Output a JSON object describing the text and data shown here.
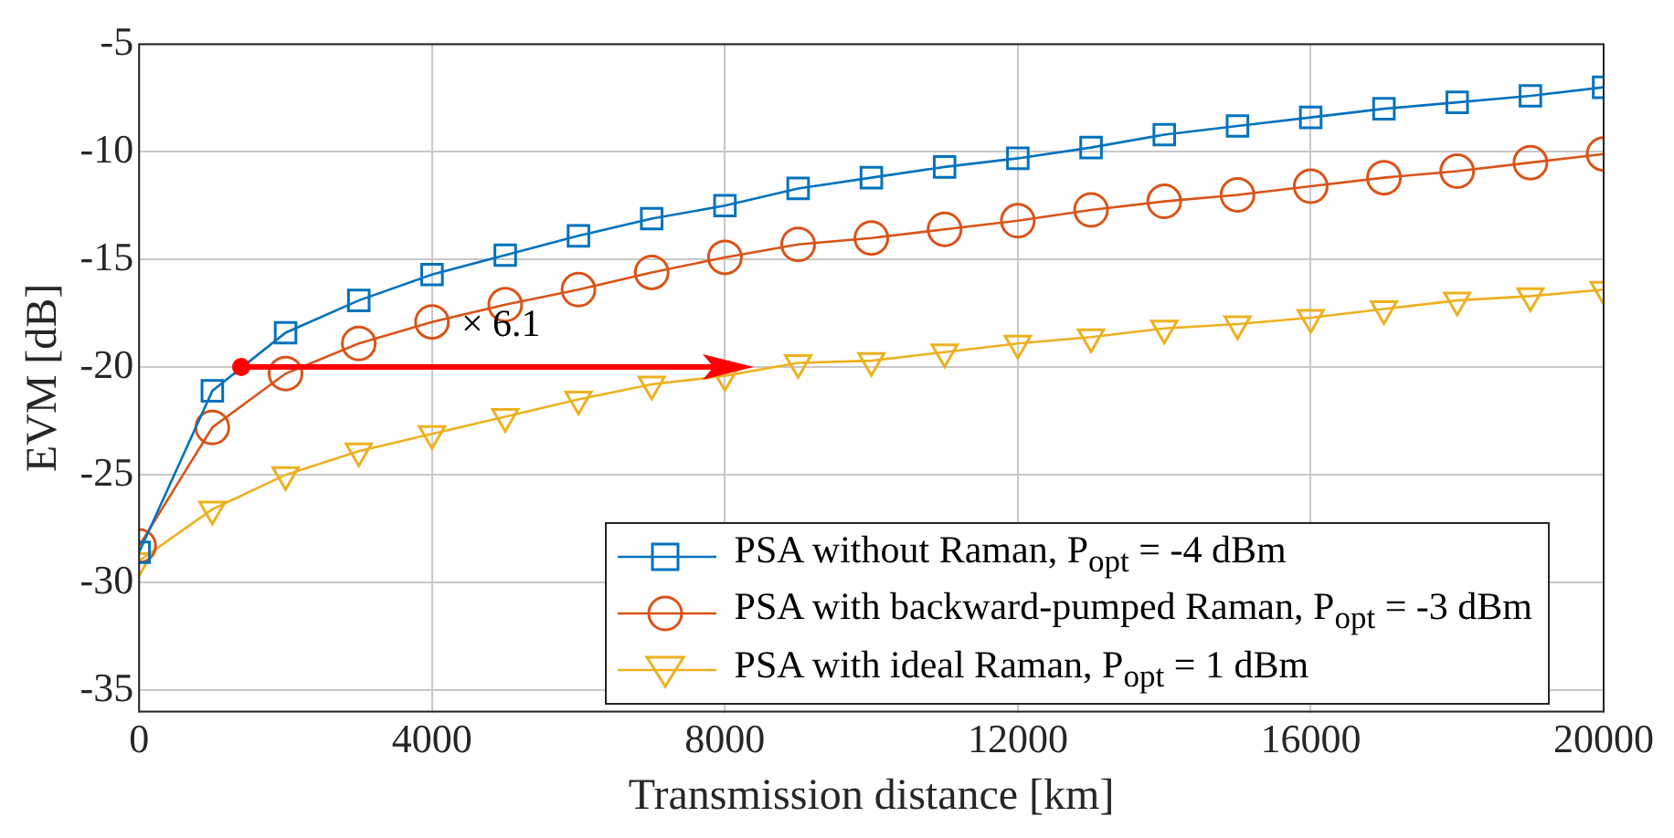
{
  "chart_data": {
    "type": "line",
    "xlabel": "Transmission distance [km]",
    "ylabel": "EVM [dB]",
    "x": [
      0,
      1000,
      2000,
      3000,
      4000,
      5000,
      6000,
      7000,
      8000,
      9000,
      10000,
      11000,
      12000,
      13000,
      14000,
      15000,
      16000,
      17000,
      18000,
      19000,
      20000
    ],
    "series": [
      {
        "name": "PSA without Raman, P$_{opt}$ = -4 dBm",
        "color": "#0072bd",
        "marker": "square",
        "values": [
          -28.6,
          -21.1,
          -18.4,
          -16.9,
          -15.7,
          -14.8,
          -13.9,
          -13.1,
          -12.5,
          -11.7,
          -11.2,
          -10.7,
          -10.3,
          -9.8,
          -9.2,
          -8.8,
          -8.4,
          -8.0,
          -7.7,
          -7.4,
          -7.0
        ]
      },
      {
        "name": "PSA with backward-pumped Raman, P$_{opt}$ = -3 dBm",
        "color": "#d95319",
        "marker": "circle",
        "values": [
          -28.3,
          -22.8,
          -20.3,
          -18.9,
          -17.9,
          -17.1,
          -16.4,
          -15.6,
          -14.9,
          -14.3,
          -14.0,
          -13.6,
          -13.2,
          -12.7,
          -12.3,
          -12.0,
          -11.6,
          -11.2,
          -10.9,
          -10.5,
          -10.1
        ]
      },
      {
        "name": "PSA with ideal Raman, P$_{opt}$ = 1 dBm",
        "color": "#edb120",
        "marker": "triangle",
        "values": [
          -29.0,
          -26.6,
          -25.0,
          -23.9,
          -23.1,
          -22.3,
          -21.5,
          -20.8,
          -20.4,
          -19.8,
          -19.7,
          -19.3,
          -18.9,
          -18.6,
          -18.2,
          -18.0,
          -17.7,
          -17.3,
          -16.9,
          -16.7,
          -16.4
        ]
      }
    ],
    "annotations": [
      "× 6.1"
    ],
    "xlim": [
      0,
      20000
    ],
    "xticks": [
      0,
      4000,
      8000,
      12000,
      16000,
      20000
    ],
    "ylim": [
      -36,
      -5
    ],
    "yticks": [
      -35,
      -30,
      -25,
      -20,
      -15,
      -10,
      -5
    ],
    "grid": true,
    "legend": "bottom right",
    "line_style": "solid"
  }
}
